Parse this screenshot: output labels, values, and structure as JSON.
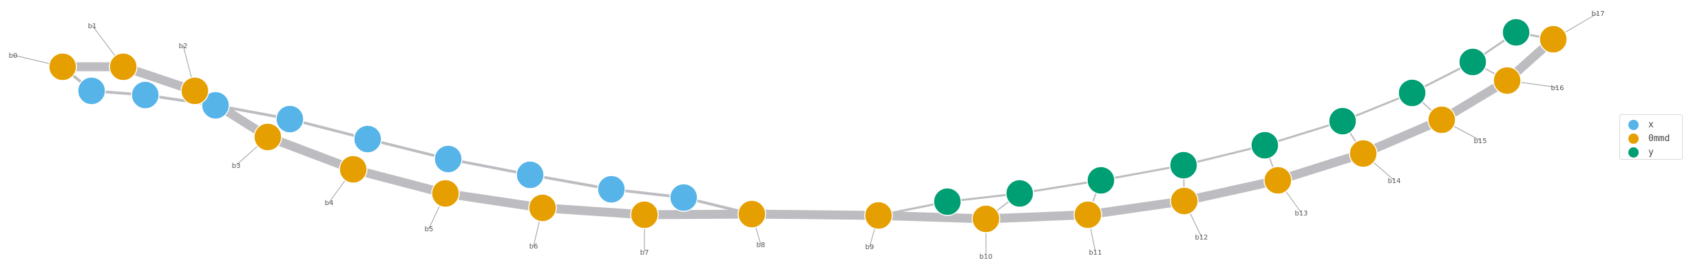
{
  "legend": {
    "entries": [
      {
        "label": "x",
        "color": "#56b4e9"
      },
      {
        "label": "0mmd",
        "color": "#e69f00"
      },
      {
        "label": "y",
        "color": "#009e73"
      }
    ]
  },
  "colors": {
    "x": "#56b4e9",
    "mmd": "#e69f00",
    "y": "#009e73",
    "path_thick": "#bdbdc1",
    "path_thin": "#bdbdc1",
    "leader": "#9a9a9a",
    "label": "#555555"
  },
  "labels": [
    "b0",
    "b1",
    "b2",
    "b3",
    "b4",
    "b5",
    "b6",
    "b7",
    "b8",
    "b9",
    "b10",
    "b11",
    "b12",
    "b13",
    "b14",
    "b15",
    "b16",
    "b17"
  ]
}
